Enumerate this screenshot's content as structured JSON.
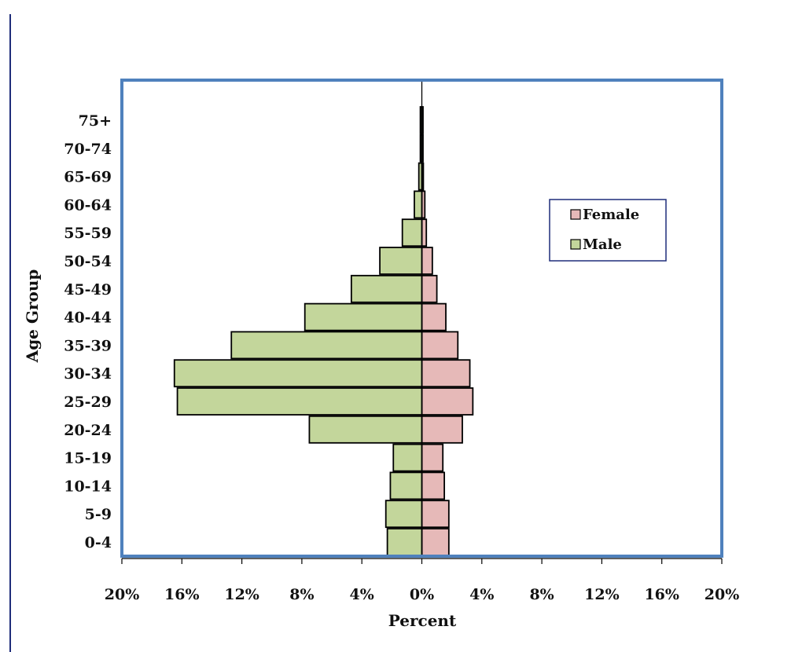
{
  "chart_data": {
    "type": "bar",
    "orientation": "horizontal-population-pyramid",
    "title": "",
    "xlabel": "Percent",
    "ylabel": "Age Group",
    "categories": [
      "0-4",
      "5-9",
      "10-14",
      "15-19",
      "20-24",
      "25-29",
      "30-34",
      "35-39",
      "40-44",
      "45-49",
      "50-54",
      "55-59",
      "60-64",
      "65-69",
      "70-74",
      "75+"
    ],
    "series": [
      {
        "name": "Female",
        "color": "#e6b9b8",
        "values": [
          1.8,
          1.8,
          1.5,
          1.4,
          2.7,
          3.4,
          3.2,
          2.4,
          1.6,
          1.0,
          0.7,
          0.3,
          0.2,
          0.1,
          0.05,
          0.05
        ]
      },
      {
        "name": "Male",
        "color": "#c3d69b",
        "values": [
          -2.3,
          -2.4,
          -2.1,
          -1.9,
          -7.5,
          -16.3,
          -16.5,
          -12.7,
          -7.8,
          -4.7,
          -2.8,
          -1.3,
          -0.5,
          -0.2,
          -0.1,
          -0.1
        ]
      }
    ],
    "x_ticks": [
      "20%",
      "16%",
      "12%",
      "8%",
      "4%",
      "0%",
      "4%",
      "8%",
      "12%",
      "16%",
      "20%"
    ],
    "xlim": [
      -20,
      20
    ],
    "legend_position": "right",
    "grid": false,
    "plot_border_color": "#4f81bd"
  }
}
